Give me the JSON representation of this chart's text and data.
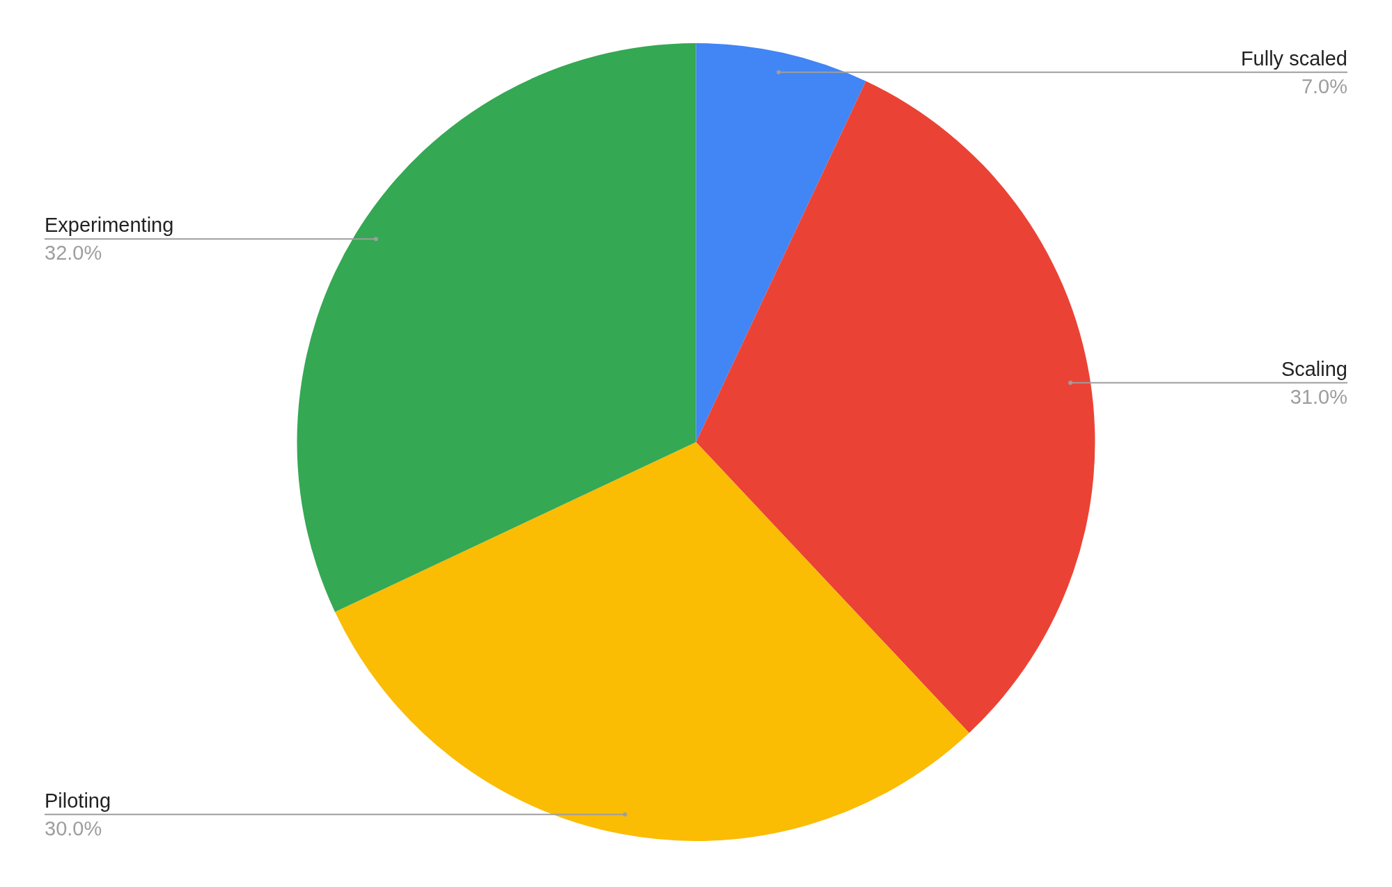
{
  "chart_data": {
    "type": "pie",
    "categories": [
      "Fully scaled",
      "Scaling",
      "Piloting",
      "Experimenting"
    ],
    "values": [
      7,
      31,
      30,
      32
    ],
    "colors": [
      "#4285f4",
      "#ea4335",
      "#fbbc04",
      "#34a853"
    ],
    "value_labels": [
      "7.0%",
      "31.0%",
      "30.0%",
      "32.0%"
    ],
    "legend": false
  }
}
